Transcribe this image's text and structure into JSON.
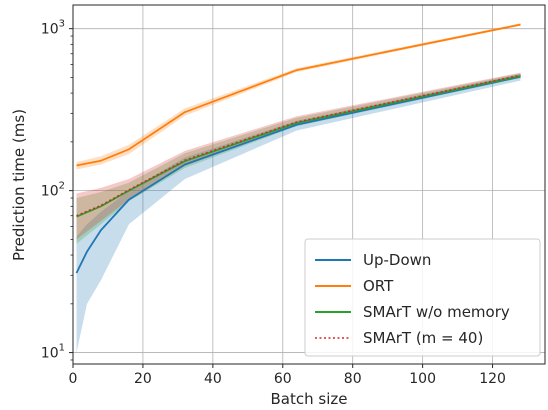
{
  "chart_data": {
    "type": "line",
    "xlabel": "Batch size",
    "ylabel": "Prediction time (ms)",
    "xlim": [
      0,
      135
    ],
    "ylim": [
      8.5,
      1400
    ],
    "yscale": "log",
    "grid": true,
    "legend_position": "bottom-right",
    "x_ticks": [
      0,
      20,
      40,
      60,
      80,
      100,
      120
    ],
    "y_ticks": [
      {
        "value": 10,
        "base": "10",
        "exp": "1"
      },
      {
        "value": 100,
        "base": "10",
        "exp": "2"
      },
      {
        "value": 1000,
        "base": "10",
        "exp": "3"
      }
    ],
    "series": [
      {
        "name": "Up-Down",
        "color": "#1f77b4",
        "style": "solid",
        "x": [
          1,
          4,
          8,
          16,
          32,
          64,
          128
        ],
        "y": [
          31,
          42,
          57,
          88,
          145,
          255,
          505
        ],
        "band_low": [
          10,
          20,
          28,
          62,
          118,
          235,
          478
        ],
        "band_high": [
          52,
          62,
          74,
          100,
          160,
          270,
          525
        ]
      },
      {
        "name": "ORT",
        "color": "#ff7f0e",
        "style": "solid",
        "x": [
          1,
          8,
          16,
          32,
          64,
          128
        ],
        "y": [
          143,
          153,
          180,
          305,
          555,
          1060
        ],
        "band_low": [
          135,
          145,
          168,
          290,
          540,
          1045
        ],
        "band_high": [
          150,
          163,
          192,
          322,
          570,
          1080
        ]
      },
      {
        "name": "SMArT w/o memory",
        "color": "#2ca02c",
        "style": "solid",
        "x": [
          1,
          8,
          16,
          32,
          64,
          128
        ],
        "y": [
          69,
          80,
          100,
          152,
          262,
          510
        ],
        "band_low": [
          47,
          62,
          86,
          138,
          250,
          495
        ],
        "band_high": [
          90,
          98,
          112,
          170,
          282,
          530
        ]
      },
      {
        "name": "SMArT (m = 40)",
        "color": "#d62728",
        "style": "dotted",
        "x": [
          1,
          8,
          16,
          32,
          64,
          128
        ],
        "y": [
          70,
          81,
          101,
          154,
          265,
          515
        ],
        "band_low": [
          50,
          65,
          88,
          142,
          254,
          500
        ],
        "band_high": [
          96,
          104,
          118,
          176,
          288,
          535
        ]
      }
    ]
  }
}
